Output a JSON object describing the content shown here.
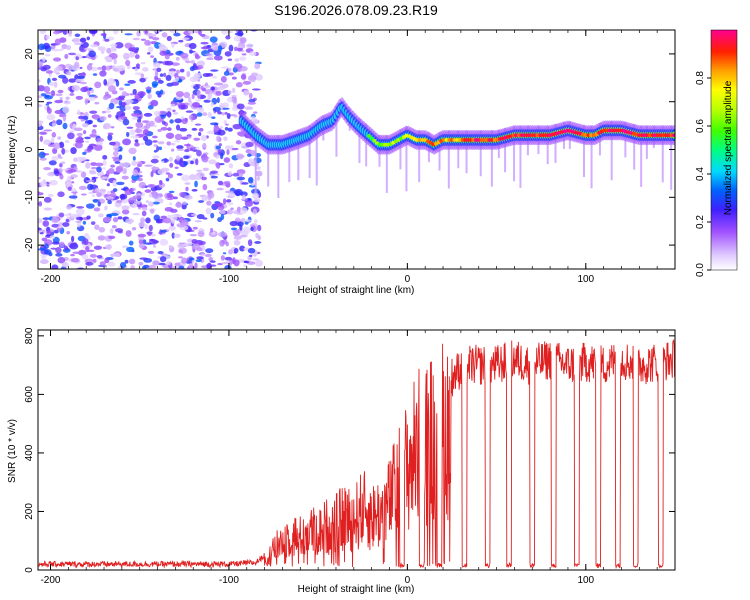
{
  "chart_data": [
    {
      "type": "heatmap",
      "title": "S196.2026.078.09.23.R19",
      "xlabel": "Height of straight line (km)",
      "ylabel": "Frequency (Hz)",
      "xlim": [
        -207,
        150
      ],
      "ylim": [
        -25,
        25
      ],
      "x_ticks": [
        -200,
        -100,
        0,
        100
      ],
      "x_tick_labels": [
        "-200",
        "-100",
        "0",
        "100"
      ],
      "y_ticks": [
        -20,
        -10,
        0,
        10,
        20
      ],
      "y_tick_labels": [
        "-20",
        "-10",
        "0",
        "10",
        "20"
      ],
      "colorbar": {
        "label": "Normalized spectral amplitude",
        "range": [
          0,
          1
        ],
        "ticks": [
          0.0,
          0.2,
          0.4,
          0.6,
          0.8
        ],
        "tick_labels": [
          "0.0",
          "0.2",
          "0.4",
          "0.6",
          "0.8"
        ]
      },
      "noise_region_x": [
        -207,
        -83
      ],
      "ridge": {
        "x": [
          -93,
          -85,
          -78,
          -70,
          -62,
          -55,
          -48,
          -42,
          -37,
          -33,
          -28,
          -22,
          -16,
          -10,
          -5,
          0,
          5,
          10,
          15,
          20,
          30,
          40,
          50,
          60,
          70,
          80,
          90,
          100,
          105,
          110,
          120,
          130,
          140,
          150
        ],
        "freq_hz": [
          6,
          3,
          1,
          1,
          2,
          3,
          5,
          6,
          9,
          7,
          5,
          3,
          1,
          1,
          2,
          3,
          2,
          2,
          1,
          2,
          2,
          2,
          2,
          3,
          3,
          3,
          4,
          3,
          3,
          4,
          4,
          3,
          3,
          3
        ],
        "amplitude": [
          0.3,
          0.35,
          0.4,
          0.42,
          0.45,
          0.48,
          0.5,
          0.5,
          0.52,
          0.55,
          0.55,
          0.6,
          0.62,
          0.65,
          0.65,
          0.7,
          0.75,
          0.78,
          0.9,
          0.8,
          0.85,
          0.95,
          0.9,
          0.95,
          0.9,
          0.95,
          1.0,
          0.9,
          0.85,
          0.95,
          1.0,
          0.95,
          0.95,
          0.95
        ]
      }
    },
    {
      "type": "line",
      "xlabel": "Height of straight line (km)",
      "ylabel": "SNR (10 * v/v)",
      "xlim": [
        -207,
        150
      ],
      "ylim": [
        0,
        820
      ],
      "x_ticks": [
        -200,
        -100,
        0,
        100
      ],
      "x_tick_labels": [
        "-200",
        "-100",
        "0",
        "100"
      ],
      "y_ticks": [
        0,
        200,
        400,
        600,
        800
      ],
      "y_tick_labels": [
        "0",
        "200",
        "400",
        "600",
        "800"
      ],
      "color": "#e02020",
      "series": [
        {
          "name": "SNR",
          "x": [
            -207,
            -180,
            -150,
            -120,
            -100,
            -85,
            -78,
            -72,
            -66,
            -60,
            -55,
            -50,
            -45,
            -40,
            -35,
            -30,
            -25,
            -20,
            -15,
            -10,
            -5,
            0,
            5,
            10,
            15,
            20,
            25,
            30,
            35,
            40,
            50,
            60,
            70,
            80,
            90,
            100,
            110,
            120,
            130,
            140,
            150
          ],
          "y": [
            20,
            20,
            20,
            20,
            20,
            25,
            60,
            120,
            160,
            150,
            180,
            170,
            200,
            210,
            240,
            230,
            280,
            240,
            260,
            310,
            400,
            470,
            550,
            580,
            610,
            640,
            660,
            690,
            700,
            700,
            700,
            720,
            700,
            720,
            700,
            710,
            700,
            720,
            700,
            710,
            720
          ]
        }
      ],
      "dropouts_x": [
        -3,
        8,
        18,
        32,
        45,
        57,
        70,
        82,
        95,
        107,
        118,
        128,
        142
      ]
    }
  ]
}
